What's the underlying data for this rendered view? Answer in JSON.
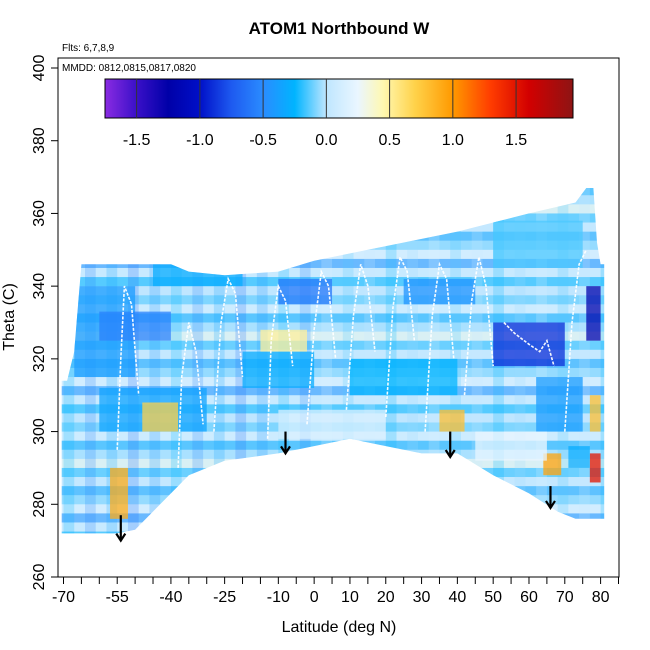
{
  "chart_data": {
    "type": "heatmap",
    "title": "ATOM1 Northbound W",
    "xlabel": "Latitude (deg N)",
    "ylabel": "Theta (C)",
    "annotations": {
      "flights": "Flts: 6,7,8,9",
      "dates": "MMDD: 0812,0815,0817,0820"
    },
    "xlim": [
      -70,
      85
    ],
    "ylim": [
      260,
      402
    ],
    "x_ticks_major": [
      -70,
      -55,
      -40,
      -25,
      -10,
      0,
      10,
      20,
      30,
      40,
      50,
      60,
      70,
      80
    ],
    "x_tick_labels": [
      "-70",
      "-55",
      "-40",
      "-25",
      "-10",
      "0",
      "10",
      "20",
      "30",
      "40",
      "50",
      "60",
      "70",
      "80"
    ],
    "x_ticks_minor": [
      -65,
      -60,
      -50,
      -45,
      -35,
      -30,
      -20,
      -15,
      -5,
      5,
      15,
      25,
      35,
      45,
      55,
      65,
      75,
      85
    ],
    "y_ticks": [
      260,
      280,
      300,
      320,
      340,
      360,
      380,
      400
    ],
    "y_tick_labels": [
      "260",
      "280",
      "300",
      "320",
      "340",
      "360",
      "380",
      "400"
    ],
    "colorbar": {
      "range": [
        -1.75,
        1.95
      ],
      "ticks": [
        -1.5,
        -1.0,
        -0.5,
        0.0,
        0.5,
        1.0,
        1.5
      ],
      "tick_labels": [
        "-1.5",
        "-1.0",
        "-0.5",
        "0.0",
        "0.5",
        "1.0",
        "1.5"
      ],
      "divider_values": [
        -1.5,
        -1.0,
        -0.5,
        0.0,
        0.5,
        1.0,
        1.5
      ],
      "stops": [
        {
          "v": -1.75,
          "c": "#8a2be2"
        },
        {
          "v": -1.5,
          "c": "#3a10c8"
        },
        {
          "v": -1.25,
          "c": "#0000a8"
        },
        {
          "v": -1.0,
          "c": "#0010c8"
        },
        {
          "v": -0.75,
          "c": "#1e5af0"
        },
        {
          "v": -0.5,
          "c": "#2a8cff"
        },
        {
          "v": -0.25,
          "c": "#00b4ff"
        },
        {
          "v": 0.0,
          "c": "#bfe6ff"
        },
        {
          "v": 0.25,
          "c": "#eaf6ff"
        },
        {
          "v": 0.45,
          "c": "#fff8b0"
        },
        {
          "v": 0.7,
          "c": "#ffd24a"
        },
        {
          "v": 1.0,
          "c": "#ff9900"
        },
        {
          "v": 1.3,
          "c": "#ff3c00"
        },
        {
          "v": 1.6,
          "c": "#d20000"
        },
        {
          "v": 1.95,
          "c": "#8e1414"
        }
      ]
    },
    "coverage": {
      "top": [
        [
          -70.5,
          314
        ],
        [
          -69,
          314
        ],
        [
          -67,
          322
        ],
        [
          -65,
          346
        ],
        [
          -63,
          346
        ],
        [
          -62,
          346
        ],
        [
          -40,
          346
        ],
        [
          -35,
          344
        ],
        [
          -25,
          343
        ],
        [
          -10,
          344
        ],
        [
          0,
          347
        ],
        [
          20,
          351
        ],
        [
          40,
          355
        ],
        [
          60,
          360
        ],
        [
          73,
          363
        ],
        [
          76,
          367
        ],
        [
          78,
          367
        ],
        [
          79,
          352
        ],
        [
          80,
          346
        ],
        [
          81,
          346
        ]
      ],
      "bottom": [
        [
          -70.5,
          272
        ],
        [
          -55,
          272
        ],
        [
          -50,
          273
        ],
        [
          -35,
          288
        ],
        [
          -25,
          292
        ],
        [
          -10,
          294
        ],
        [
          0,
          296
        ],
        [
          10,
          298
        ],
        [
          20,
          296
        ],
        [
          30,
          294
        ],
        [
          40,
          294
        ],
        [
          50,
          288
        ],
        [
          60,
          283
        ],
        [
          68,
          278
        ],
        [
          73,
          276
        ],
        [
          77,
          276
        ],
        [
          81,
          276
        ]
      ]
    },
    "anomaly_regions": [
      {
        "x0": -67,
        "x1": -50,
        "y0": 315,
        "y1": 340,
        "value": -0.4
      },
      {
        "x0": -60,
        "x1": -40,
        "y0": 325,
        "y1": 333,
        "value": -0.55
      },
      {
        "x0": -45,
        "x1": -20,
        "y0": 340,
        "y1": 346,
        "value": -0.3
      },
      {
        "x0": -10,
        "x1": 5,
        "y0": 335,
        "y1": 342,
        "value": -0.6
      },
      {
        "x0": 25,
        "x1": 45,
        "y0": 335,
        "y1": 342,
        "value": -0.45
      },
      {
        "x0": 50,
        "x1": 70,
        "y0": 318,
        "y1": 330,
        "value": -0.9
      },
      {
        "x0": 62,
        "x1": 75,
        "y0": 300,
        "y1": 315,
        "value": -0.4
      },
      {
        "x0": -60,
        "x1": -30,
        "y0": 300,
        "y1": 312,
        "value": -0.35
      },
      {
        "x0": -20,
        "x1": 0,
        "y0": 312,
        "y1": 322,
        "value": -0.3
      },
      {
        "x0": 10,
        "x1": 40,
        "y0": 310,
        "y1": 320,
        "value": -0.25
      },
      {
        "x0": -40,
        "x1": -10,
        "y0": 355,
        "y1": 360,
        "value": -0.2
      },
      {
        "x0": 50,
        "x1": 75,
        "y0": 345,
        "y1": 358,
        "value": -0.15
      },
      {
        "x0": -15,
        "x1": -2,
        "y0": 322,
        "y1": 328,
        "value": 0.5
      },
      {
        "x0": -48,
        "x1": -38,
        "y0": 300,
        "y1": 308,
        "value": 0.7
      },
      {
        "x0": 35,
        "x1": 42,
        "y0": 300,
        "y1": 306,
        "value": 0.8
      },
      {
        "x0": -57,
        "x1": -52,
        "y0": 276,
        "y1": 290,
        "value": 0.9
      },
      {
        "x0": 64,
        "x1": 69,
        "y0": 288,
        "y1": 294,
        "value": 0.95
      },
      {
        "x0": 77,
        "x1": 80,
        "y0": 286,
        "y1": 294,
        "value": 1.5
      },
      {
        "x0": 77,
        "x1": 80,
        "y0": 300,
        "y1": 310,
        "value": 0.8
      },
      {
        "x0": 76,
        "x1": 80,
        "y0": 325,
        "y1": 340,
        "value": -1.2
      },
      {
        "x0": 71,
        "x1": 77,
        "y0": 290,
        "y1": 296,
        "value": -0.3
      },
      {
        "x0": -10,
        "x1": 20,
        "y0": 298,
        "y1": 306,
        "value": 0.15
      },
      {
        "x0": 45,
        "x1": 65,
        "y0": 292,
        "y1": 300,
        "value": 0.25
      }
    ],
    "profile_paths": [
      [
        [
          -55,
          295
        ],
        [
          -54,
          320
        ],
        [
          -53,
          340
        ],
        [
          -51,
          335
        ],
        [
          -49,
          310
        ]
      ],
      [
        [
          -38,
          290
        ],
        [
          -37,
          315
        ],
        [
          -35,
          330
        ],
        [
          -33,
          322
        ],
        [
          -31,
          302
        ]
      ],
      [
        [
          -28,
          300
        ],
        [
          -26,
          330
        ],
        [
          -24,
          342
        ],
        [
          -22,
          338
        ],
        [
          -20,
          315
        ]
      ],
      [
        [
          -13,
          298
        ],
        [
          -12,
          325
        ],
        [
          -10,
          340
        ],
        [
          -8,
          336
        ],
        [
          -6,
          318
        ]
      ],
      [
        [
          -2,
          302
        ],
        [
          0,
          328
        ],
        [
          2,
          344
        ],
        [
          4,
          340
        ],
        [
          6,
          320
        ]
      ],
      [
        [
          9,
          306
        ],
        [
          11,
          332
        ],
        [
          13,
          346
        ],
        [
          15,
          340
        ],
        [
          17,
          322
        ]
      ],
      [
        [
          20,
          304
        ],
        [
          22,
          334
        ],
        [
          24,
          348
        ],
        [
          26,
          344
        ],
        [
          28,
          325
        ]
      ],
      [
        [
          31,
          300
        ],
        [
          33,
          332
        ],
        [
          35,
          346
        ],
        [
          37,
          342
        ],
        [
          39,
          320
        ]
      ],
      [
        [
          42,
          310
        ],
        [
          44,
          336
        ],
        [
          46,
          348
        ],
        [
          48,
          340
        ],
        [
          50,
          318
        ]
      ],
      [
        [
          53,
          330
        ],
        [
          56,
          327
        ],
        [
          60,
          324
        ],
        [
          63,
          322
        ],
        [
          65,
          325
        ],
        [
          67,
          318
        ]
      ],
      [
        [
          70,
          300
        ],
        [
          72,
          330
        ],
        [
          74,
          346
        ],
        [
          76,
          350
        ]
      ]
    ],
    "arrows": [
      {
        "x": -54,
        "y_top": 277,
        "y_tip": 270
      },
      {
        "x": -8,
        "y_top": 300,
        "y_tip": 294
      },
      {
        "x": 38,
        "y_top": 300,
        "y_tip": 293
      },
      {
        "x": 66,
        "y_top": 285,
        "y_tip": 279
      }
    ]
  }
}
